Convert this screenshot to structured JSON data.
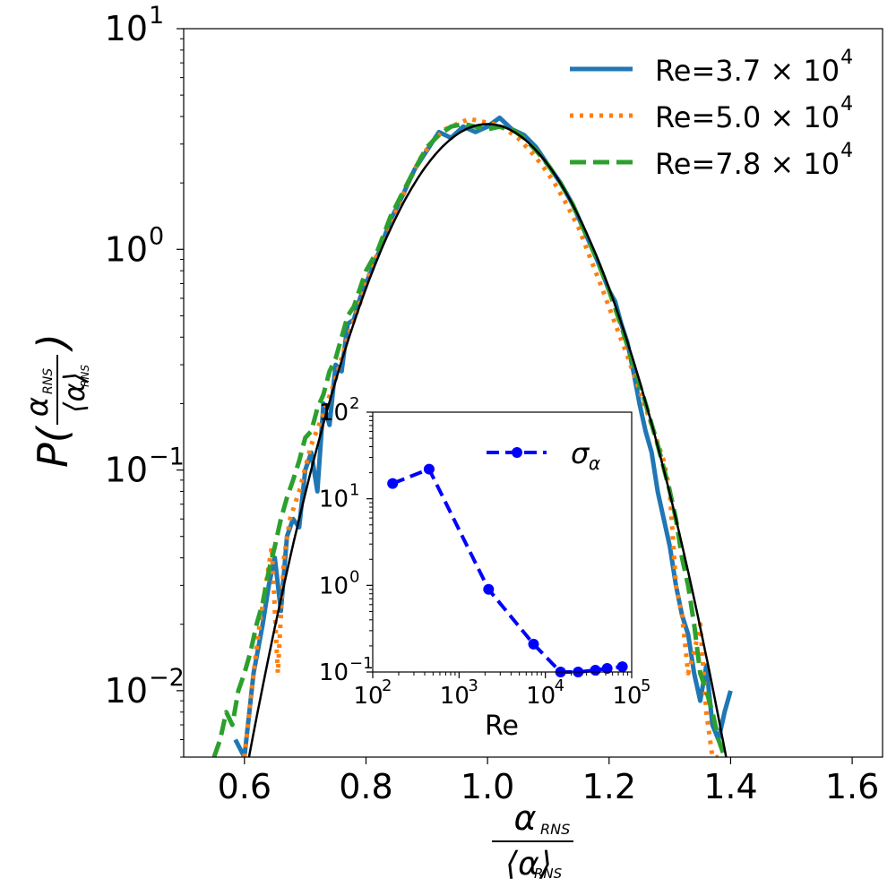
{
  "chart_data": [
    {
      "type": "line",
      "yscale": "log",
      "xlim": [
        0.5,
        1.65
      ],
      "ylim": [
        0.005,
        10
      ],
      "xlabel_numerator": "α",
      "xlabel_denominator": "⟨α⟩",
      "xlabel_subscript": "RNS",
      "ylabel_prefix": "P(",
      "ylabel_suffix": ")",
      "xticks": [
        0.6,
        0.8,
        1.0,
        1.2,
        1.4,
        1.6
      ],
      "xtick_labels": [
        "0.6",
        "0.8",
        "1.0",
        "1.2",
        "1.4",
        "1.6"
      ],
      "yticks": [
        0.01,
        0.1,
        1,
        10
      ],
      "ytick_exponents": [
        "−2",
        "−1",
        "0",
        "1"
      ],
      "legend_position": "top-right",
      "series": [
        {
          "name": "Re=3.7 × 10",
          "name_exponent": "4",
          "color": "#1f77b4",
          "style": "solid",
          "x": [
            0.585,
            0.6,
            0.615,
            0.63,
            0.64,
            0.65,
            0.66,
            0.67,
            0.68,
            0.69,
            0.7,
            0.71,
            0.72,
            0.73,
            0.74,
            0.75,
            0.76,
            0.77,
            0.78,
            0.79,
            0.8,
            0.82,
            0.84,
            0.86,
            0.88,
            0.9,
            0.92,
            0.94,
            0.96,
            0.98,
            1.0,
            1.02,
            1.04,
            1.06,
            1.08,
            1.1,
            1.12,
            1.14,
            1.16,
            1.18,
            1.2,
            1.21,
            1.22,
            1.23,
            1.24,
            1.25,
            1.26,
            1.27,
            1.28,
            1.29,
            1.3,
            1.31,
            1.32,
            1.33,
            1.34,
            1.35,
            1.36,
            1.37,
            1.38,
            1.39,
            1.4
          ],
          "y": [
            0.006,
            0.005,
            0.012,
            0.02,
            0.03,
            0.04,
            0.023,
            0.05,
            0.06,
            0.055,
            0.1,
            0.12,
            0.08,
            0.2,
            0.16,
            0.3,
            0.28,
            0.46,
            0.48,
            0.6,
            0.7,
            0.95,
            1.35,
            1.75,
            2.3,
            2.8,
            3.4,
            3.2,
            3.6,
            3.4,
            3.6,
            3.95,
            3.5,
            3.3,
            2.9,
            2.4,
            2.0,
            1.6,
            1.2,
            0.9,
            0.65,
            0.58,
            0.46,
            0.38,
            0.28,
            0.2,
            0.15,
            0.12,
            0.08,
            0.06,
            0.045,
            0.03,
            0.022,
            0.018,
            0.012,
            0.009,
            0.013,
            0.007,
            0.006,
            0.008,
            0.01
          ]
        },
        {
          "name": "Re=5.0 × 10",
          "name_exponent": "4",
          "color": "#ff7f0e",
          "style": "dotted",
          "x": [
            0.6,
            0.615,
            0.625,
            0.635,
            0.645,
            0.655,
            0.665,
            0.675,
            0.69,
            0.71,
            0.73,
            0.75,
            0.77,
            0.79,
            0.81,
            0.83,
            0.85,
            0.87,
            0.89,
            0.91,
            0.93,
            0.95,
            0.97,
            0.99,
            1.01,
            1.03,
            1.05,
            1.07,
            1.09,
            1.11,
            1.13,
            1.15,
            1.17,
            1.19,
            1.21,
            1.23,
            1.25,
            1.27,
            1.29,
            1.3,
            1.31,
            1.32,
            1.33,
            1.34,
            1.35,
            1.36,
            1.37,
            1.38
          ],
          "y": [
            0.005,
            0.012,
            0.02,
            0.03,
            0.045,
            0.012,
            0.04,
            0.06,
            0.08,
            0.13,
            0.18,
            0.26,
            0.4,
            0.57,
            0.85,
            1.1,
            1.5,
            2.0,
            2.6,
            3.1,
            3.5,
            3.7,
            3.9,
            3.8,
            3.7,
            3.5,
            3.2,
            2.8,
            2.4,
            2.0,
            1.6,
            1.25,
            0.9,
            0.65,
            0.46,
            0.33,
            0.23,
            0.16,
            0.11,
            0.08,
            0.03,
            0.022,
            0.012,
            0.015,
            0.02,
            0.008,
            0.005,
            0.005
          ]
        },
        {
          "name": "Re=7.8 × 10",
          "name_exponent": "4",
          "color": "#2ca02c",
          "style": "dashed",
          "x": [
            0.55,
            0.56,
            0.57,
            0.58,
            0.59,
            0.6,
            0.61,
            0.62,
            0.63,
            0.64,
            0.65,
            0.66,
            0.67,
            0.68,
            0.69,
            0.7,
            0.71,
            0.72,
            0.73,
            0.74,
            0.75,
            0.76,
            0.77,
            0.78,
            0.8,
            0.82,
            0.84,
            0.86,
            0.88,
            0.9,
            0.92,
            0.94,
            0.96,
            0.98,
            1.0,
            1.02,
            1.04,
            1.06,
            1.08,
            1.1,
            1.12,
            1.14,
            1.16,
            1.18,
            1.2,
            1.22,
            1.24,
            1.26,
            1.28,
            1.3,
            1.31,
            1.32,
            1.33,
            1.34,
            1.35,
            1.36,
            1.37,
            1.38,
            1.39
          ],
          "y": [
            0.005,
            0.006,
            0.008,
            0.007,
            0.01,
            0.012,
            0.015,
            0.02,
            0.025,
            0.035,
            0.045,
            0.06,
            0.075,
            0.09,
            0.11,
            0.14,
            0.15,
            0.19,
            0.22,
            0.28,
            0.32,
            0.4,
            0.5,
            0.55,
            0.8,
            1.0,
            1.4,
            1.8,
            2.3,
            2.9,
            3.3,
            3.6,
            3.7,
            3.6,
            3.5,
            3.6,
            3.5,
            3.2,
            2.8,
            2.4,
            2.0,
            1.6,
            1.2,
            0.9,
            0.65,
            0.45,
            0.3,
            0.2,
            0.13,
            0.08,
            0.06,
            0.04,
            0.03,
            0.02,
            0.012,
            0.01,
            0.008,
            0.006,
            0.005
          ]
        },
        {
          "name": "Gaussian fit",
          "legend": false,
          "color": "#000000",
          "style": "solid",
          "model": "gaussian",
          "mean": 1.0,
          "sigma": 0.108,
          "x_range": [
            0.59,
            1.4
          ]
        }
      ]
    },
    {
      "type": "line",
      "inset": true,
      "xscale": "log",
      "yscale": "log",
      "xlim": [
        100,
        100000
      ],
      "ylim": [
        0.1,
        100
      ],
      "xlabel": "Re",
      "xtick_exponents": [
        "2",
        "3",
        "4",
        "5"
      ],
      "ytick_exponents": [
        "−1",
        "0",
        "1",
        "2"
      ],
      "legend_position": "top-right",
      "series": [
        {
          "name": "σ",
          "name_subscript": "α",
          "color": "#0000ff",
          "style": "dashed",
          "marker": "circle",
          "x": [
            170,
            450,
            2200,
            7300,
            15000,
            24000,
            38000,
            52000,
            78000
          ],
          "y": [
            15,
            22,
            0.9,
            0.21,
            0.1,
            0.1,
            0.105,
            0.11,
            0.115
          ]
        }
      ]
    }
  ]
}
